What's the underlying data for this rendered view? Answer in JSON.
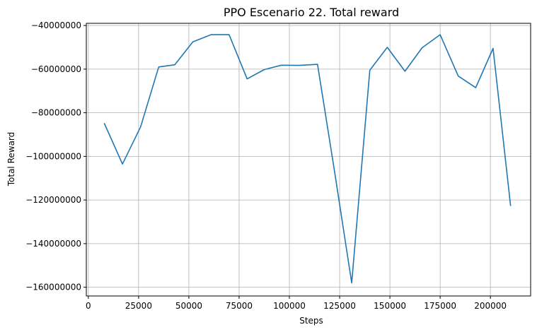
{
  "chart_data": {
    "type": "line",
    "title": "PPO Escenario 22. Total reward",
    "xlabel": "Steps",
    "ylabel": "Total Reward",
    "xlim": [
      -1000,
      220000
    ],
    "ylim": [
      -164000000,
      -39000000
    ],
    "xticks": [
      0,
      25000,
      50000,
      75000,
      100000,
      125000,
      150000,
      175000,
      200000
    ],
    "xtick_labels": [
      "0",
      "25000",
      "50000",
      "75000",
      "100000",
      "125000",
      "150000",
      "175000",
      "200000"
    ],
    "yticks": [
      -40000000,
      -60000000,
      -80000000,
      -100000000,
      -120000000,
      -140000000,
      -160000000
    ],
    "ytick_labels": [
      "−40000000",
      "−60000000",
      "−80000000",
      "−100000000",
      "−120000000",
      "−140000000",
      "−160000000"
    ],
    "grid": true,
    "series": [
      {
        "color": "#1f77b4",
        "x": [
          8000,
          17000,
          26000,
          35000,
          43000,
          52000,
          61000,
          70000,
          79000,
          87500,
          96000,
          105000,
          114000,
          122500,
          131000,
          140000,
          148700,
          157500,
          166000,
          175000,
          184000,
          192700,
          201300,
          210000
        ],
        "y": [
          -85000000,
          -103500000,
          -86500000,
          -59000000,
          -58000000,
          -47500000,
          -44200000,
          -44200000,
          -64500000,
          -60200000,
          -58200000,
          -58300000,
          -57800000,
          -107000000,
          -158000000,
          -60500000,
          -50000000,
          -61000000,
          -50200000,
          -44200000,
          -63200000,
          -68500000,
          -50500000,
          -122500000
        ]
      }
    ]
  }
}
